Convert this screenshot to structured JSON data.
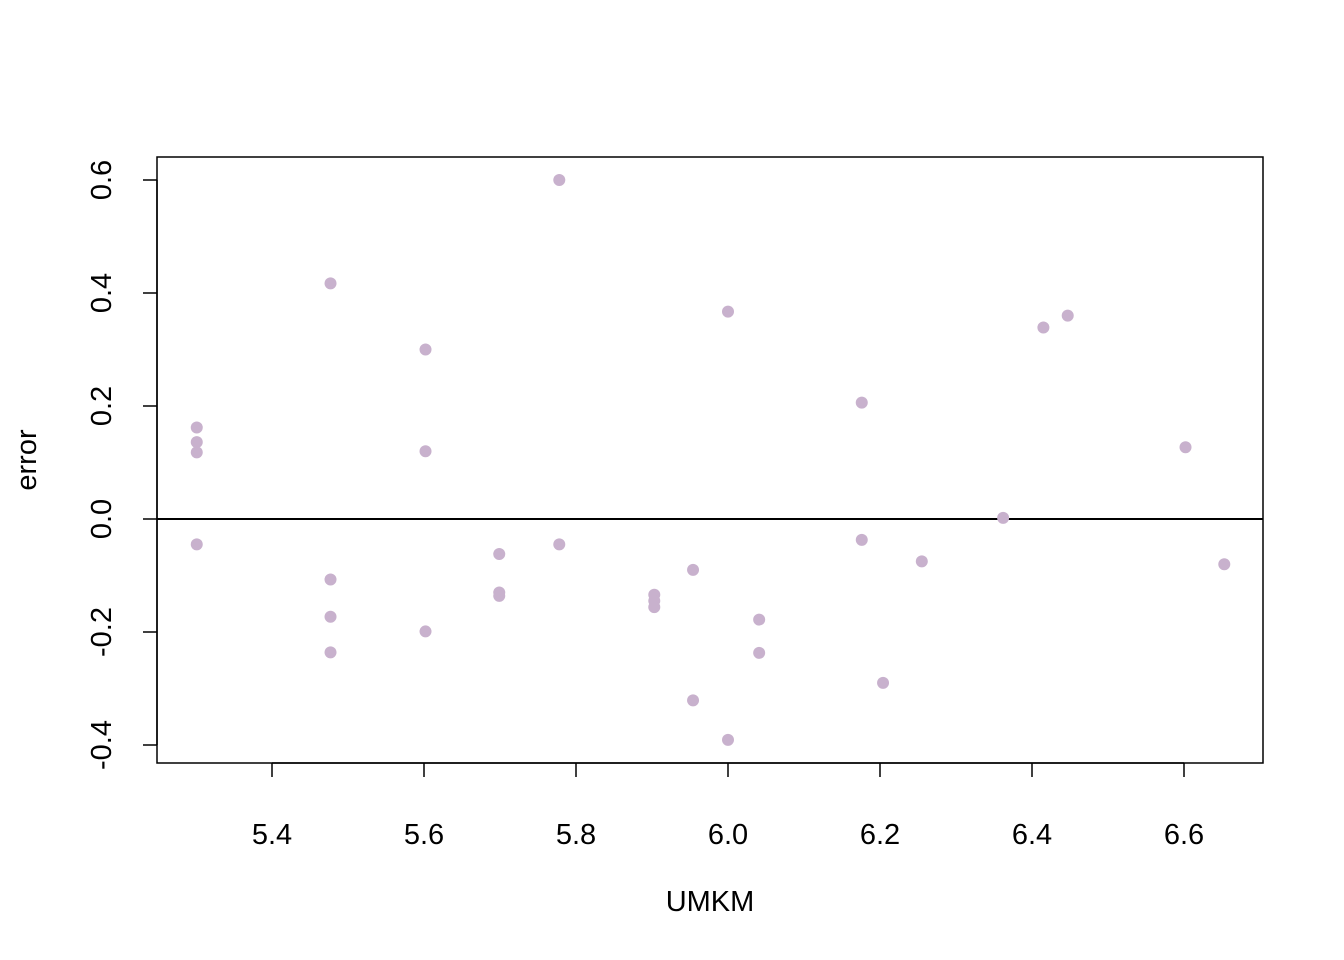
{
  "chart_data": {
    "type": "scatter",
    "title": "",
    "xlabel": "UMKM",
    "ylabel": "error",
    "xlim": [
      5.25,
      6.7
    ],
    "ylim": [
      -0.43,
      0.64
    ],
    "x_ticks": [
      5.4,
      5.6,
      5.8,
      6.0,
      6.2,
      6.4,
      6.6
    ],
    "x_tick_labels": [
      "5.4",
      "5.6",
      "5.8",
      "6.0",
      "6.2",
      "6.4",
      "6.6"
    ],
    "y_ticks": [
      -0.4,
      -0.2,
      0.0,
      0.2,
      0.4,
      0.6
    ],
    "y_tick_labels": [
      "-0.4",
      "-0.2",
      "0.0",
      "0.2",
      "0.4",
      "0.6"
    ],
    "reference_line_y": 0.0,
    "grid": false,
    "point_color": "#c8b1cd",
    "line_color": "#000000",
    "points": [
      {
        "x": 5.301,
        "y": 0.162
      },
      {
        "x": 5.301,
        "y": 0.136
      },
      {
        "x": 5.301,
        "y": 0.118
      },
      {
        "x": 5.301,
        "y": -0.045
      },
      {
        "x": 5.477,
        "y": 0.417
      },
      {
        "x": 5.477,
        "y": -0.107
      },
      {
        "x": 5.477,
        "y": -0.173
      },
      {
        "x": 5.477,
        "y": -0.236
      },
      {
        "x": 5.602,
        "y": 0.3
      },
      {
        "x": 5.602,
        "y": 0.12
      },
      {
        "x": 5.602,
        "y": -0.199
      },
      {
        "x": 5.699,
        "y": -0.062
      },
      {
        "x": 5.699,
        "y": -0.13
      },
      {
        "x": 5.699,
        "y": -0.136
      },
      {
        "x": 5.778,
        "y": 0.6
      },
      {
        "x": 5.778,
        "y": -0.045
      },
      {
        "x": 5.903,
        "y": -0.134
      },
      {
        "x": 5.903,
        "y": -0.145
      },
      {
        "x": 5.903,
        "y": -0.156
      },
      {
        "x": 5.954,
        "y": -0.09
      },
      {
        "x": 5.954,
        "y": -0.321
      },
      {
        "x": 6.0,
        "y": 0.367
      },
      {
        "x": 6.0,
        "y": -0.391
      },
      {
        "x": 6.041,
        "y": -0.178
      },
      {
        "x": 6.041,
        "y": -0.237
      },
      {
        "x": 6.176,
        "y": 0.206
      },
      {
        "x": 6.176,
        "y": -0.037
      },
      {
        "x": 6.204,
        "y": -0.29
      },
      {
        "x": 6.255,
        "y": -0.075
      },
      {
        "x": 6.362,
        "y": 0.002
      },
      {
        "x": 6.415,
        "y": 0.339
      },
      {
        "x": 6.447,
        "y": 0.36
      },
      {
        "x": 6.602,
        "y": 0.127
      },
      {
        "x": 6.653,
        "y": -0.08
      }
    ]
  }
}
